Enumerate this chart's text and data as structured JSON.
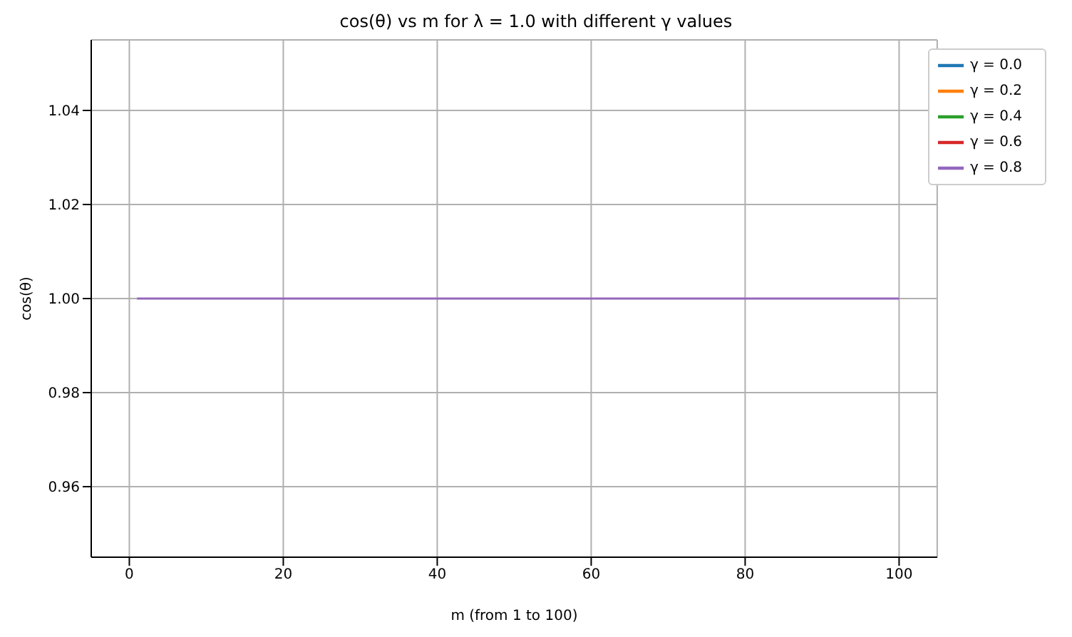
{
  "chart_data": {
    "type": "line",
    "title": "cos(θ) vs m for λ = 1.0 with different γ values",
    "xlabel": "m (from 1 to 100)",
    "ylabel": "cos(θ)",
    "x": [
      1,
      100
    ],
    "series": [
      {
        "name": "γ = 0.0",
        "color": "#1f77b4",
        "values": [
          null,
          null
        ]
      },
      {
        "name": "γ = 0.2",
        "color": "#ff7f0e",
        "values": [
          null,
          null
        ]
      },
      {
        "name": "γ = 0.4",
        "color": "#2ca02c",
        "values": [
          null,
          null
        ]
      },
      {
        "name": "γ = 0.6",
        "color": "#d62728",
        "values": [
          null,
          null
        ]
      },
      {
        "name": "γ = 0.8",
        "color": "#9467bd",
        "values": [
          1,
          1
        ]
      }
    ],
    "xlim": [
      -4.95,
      104.95
    ],
    "xticks": [
      0,
      20,
      40,
      60,
      80,
      100
    ],
    "ylim": [
      0.945,
      1.055
    ],
    "yticks": [
      {
        "value": 0.96,
        "label": "0.96"
      },
      {
        "value": 0.98,
        "label": "0.98"
      },
      {
        "value": 1,
        "label": "1.00"
      },
      {
        "value": 1.02,
        "label": "1.02"
      },
      {
        "value": 1.04,
        "label": "1.04"
      }
    ],
    "grid": true,
    "legend": "top right",
    "marker": "none",
    "line_style": "solid"
  }
}
